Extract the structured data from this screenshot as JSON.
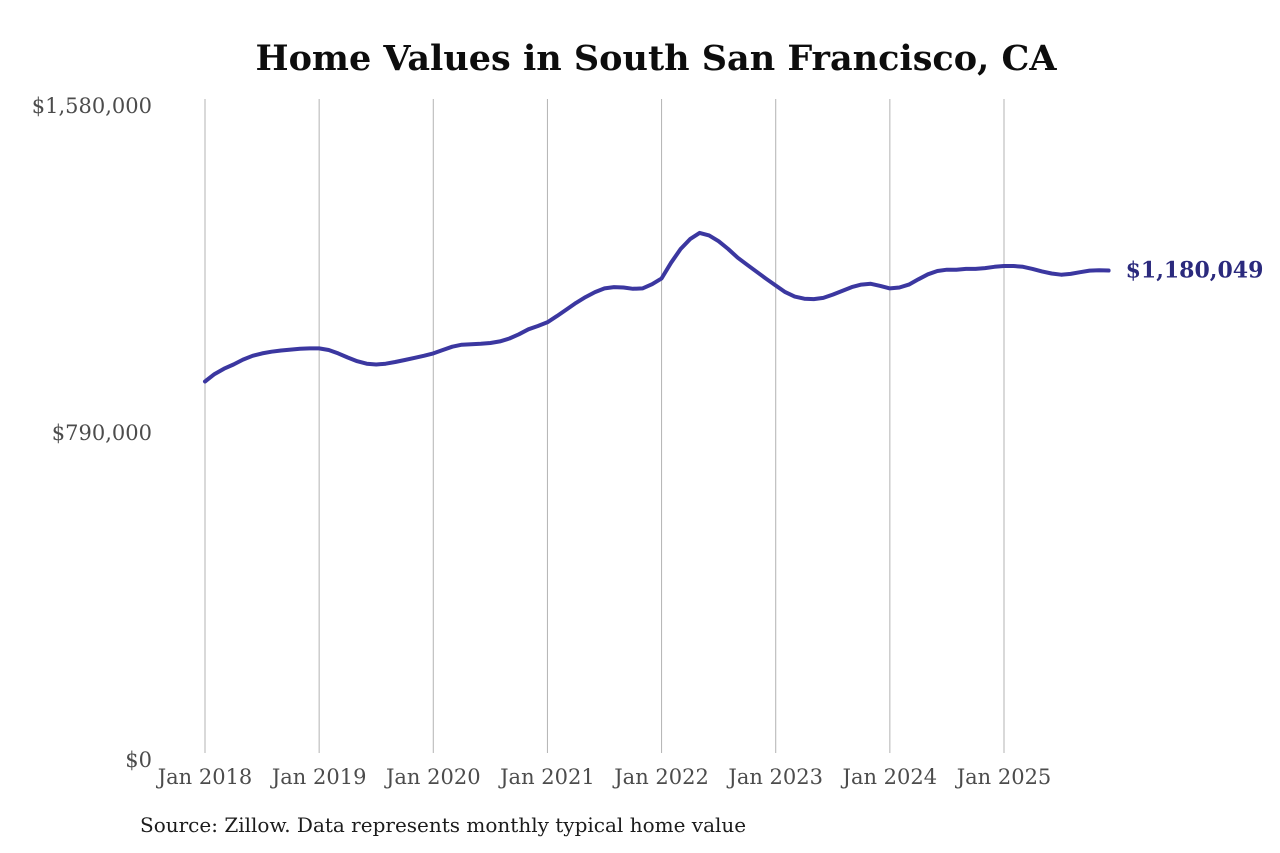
{
  "chart": {
    "title": "Home Values in South San Francisco, CA",
    "source": "Source: Zillow. Data represents monthly typical home value",
    "latest_value_label": "$1,180,049"
  },
  "chart_data": {
    "type": "line",
    "title": "Home Values in South San Francisco, CA",
    "xlabel": "",
    "ylabel": "",
    "ylim": [
      0,
      1580000
    ],
    "grid": "vertical",
    "legend": "none",
    "line_color": "#3b37a0",
    "end_label_color": "#2b2a7d",
    "end_label": "$1,180,049",
    "y_ticks": [
      {
        "label": "$0",
        "value": 0
      },
      {
        "label": "$790,000",
        "value": 790000
      },
      {
        "label": "$1,580,000",
        "value": 1580000
      }
    ],
    "x_ticks": [
      "Jan 2018",
      "Jan 2019",
      "Jan 2020",
      "Jan 2021",
      "Jan 2022",
      "Jan 2023",
      "Jan 2024",
      "Jan 2025"
    ],
    "x": [
      "Jan 2018",
      "Feb 2018",
      "Mar 2018",
      "Apr 2018",
      "May 2018",
      "Jun 2018",
      "Jul 2018",
      "Aug 2018",
      "Sep 2018",
      "Oct 2018",
      "Nov 2018",
      "Dec 2018",
      "Jan 2019",
      "Feb 2019",
      "Mar 2019",
      "Apr 2019",
      "May 2019",
      "Jun 2019",
      "Jul 2019",
      "Aug 2019",
      "Sep 2019",
      "Oct 2019",
      "Nov 2019",
      "Dec 2019",
      "Jan 2020",
      "Feb 2020",
      "Mar 2020",
      "Apr 2020",
      "May 2020",
      "Jun 2020",
      "Jul 2020",
      "Aug 2020",
      "Sep 2020",
      "Oct 2020",
      "Nov 2020",
      "Dec 2020",
      "Jan 2021",
      "Feb 2021",
      "Mar 2021",
      "Apr 2021",
      "May 2021",
      "Jun 2021",
      "Jul 2021",
      "Aug 2021",
      "Sep 2021",
      "Oct 2021",
      "Nov 2021",
      "Dec 2021",
      "Jan 2022",
      "Feb 2022",
      "Mar 2022",
      "Apr 2022",
      "May 2022",
      "Jun 2022",
      "Jul 2022",
      "Aug 2022",
      "Sep 2022",
      "Oct 2022",
      "Nov 2022",
      "Dec 2022",
      "Jan 2023",
      "Feb 2023",
      "Mar 2023",
      "Apr 2023",
      "May 2023",
      "Jun 2023",
      "Jul 2023",
      "Aug 2023",
      "Sep 2023",
      "Oct 2023",
      "Nov 2023",
      "Dec 2023",
      "Jan 2024",
      "Feb 2024",
      "Mar 2024",
      "Apr 2024",
      "May 2024",
      "Jun 2024",
      "Jul 2024",
      "Aug 2024",
      "Sep 2024",
      "Oct 2024",
      "Nov 2024",
      "Dec 2024",
      "Jan 2025",
      "Feb 2025",
      "Mar 2025",
      "Apr 2025",
      "May 2025",
      "Jun 2025",
      "Jul 2025",
      "Aug 2025",
      "Sep 2025",
      "Oct 2025",
      "Nov 2025",
      "Dec 2025"
    ],
    "values": [
      912000,
      930000,
      943000,
      953000,
      965000,
      974000,
      980000,
      984000,
      987000,
      989000,
      991000,
      992000,
      992000,
      988000,
      980000,
      970000,
      961000,
      955000,
      953000,
      955000,
      959000,
      964000,
      969000,
      974000,
      980000,
      988000,
      996000,
      1001000,
      1002000,
      1003000,
      1005000,
      1009000,
      1016000,
      1026000,
      1038000,
      1046000,
      1055000,
      1070000,
      1086000,
      1102000,
      1116000,
      1128000,
      1137000,
      1140000,
      1139000,
      1136000,
      1137000,
      1147000,
      1161000,
      1199000,
      1232000,
      1256000,
      1271000,
      1265000,
      1251000,
      1232000,
      1211000,
      1194000,
      1177000,
      1160000,
      1144000,
      1128000,
      1117000,
      1112000,
      1111000,
      1114000,
      1122000,
      1131000,
      1140000,
      1146000,
      1148000,
      1143000,
      1137000,
      1139000,
      1146000,
      1159000,
      1171000,
      1179000,
      1182000,
      1182000,
      1184000,
      1184000,
      1186000,
      1189000,
      1191000,
      1191000,
      1189000,
      1184000,
      1178000,
      1173000,
      1170000,
      1172000,
      1176000,
      1180000,
      1181000,
      1180049
    ]
  }
}
